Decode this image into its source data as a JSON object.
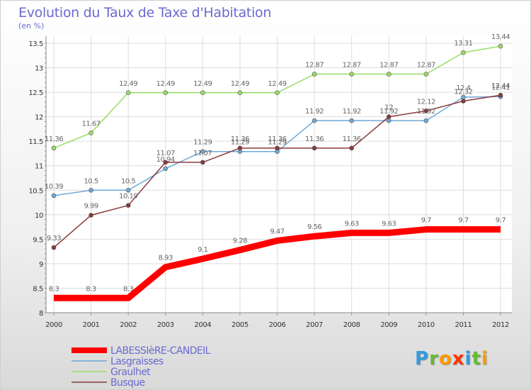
{
  "chart_data": {
    "type": "line",
    "title": "Evolution du Taux de Taxe d'Habitation",
    "subtitle": "(en %)",
    "x": [
      2000,
      2001,
      2002,
      2003,
      2004,
      2005,
      2006,
      2007,
      2008,
      2009,
      2010,
      2011,
      2012
    ],
    "yticks": [
      8,
      8.5,
      9,
      9.5,
      10,
      10.5,
      11,
      11.5,
      12,
      12.5,
      13,
      13.5
    ],
    "ylim": [
      8,
      13.5
    ],
    "grid": true,
    "legend": "bottom-left",
    "series": [
      {
        "name": "LABESSIèRE-CANDEIL",
        "color": "#ff0000",
        "values": [
          8.3,
          8.3,
          8.3,
          8.93,
          9.1,
          9.28,
          9.47,
          9.56,
          9.63,
          9.63,
          9.7,
          9.7,
          9.7
        ]
      },
      {
        "name": "Lasgraisses",
        "color": "#6fa8d6",
        "values": [
          10.39,
          10.5,
          10.5,
          10.94,
          11.29,
          11.29,
          11.29,
          11.92,
          11.92,
          11.92,
          11.92,
          12.4,
          12.41
        ]
      },
      {
        "name": "Graulhet",
        "color": "#99dd66",
        "values": [
          11.36,
          11.67,
          12.49,
          12.49,
          12.49,
          12.49,
          12.49,
          12.87,
          12.87,
          12.87,
          12.87,
          13.31,
          13.44
        ]
      },
      {
        "name": "Busque",
        "color": "#8b3a3a",
        "values": [
          9.33,
          9.99,
          10.19,
          11.07,
          11.07,
          11.36,
          11.36,
          11.36,
          11.36,
          12.0,
          12.12,
          12.32,
          12.44
        ]
      }
    ],
    "point_labels": [
      [
        "8.3",
        "8.3",
        "8.3",
        "8.93",
        "9.1",
        "9.28",
        "9.47",
        "9.56",
        "9.63",
        "9.63",
        "9.7",
        "9.7",
        "9.7"
      ],
      [
        "10.39",
        "10.5",
        "10.5",
        "10.94",
        "11.29",
        "11.29",
        "11.29",
        "11.92",
        "11.92",
        "11.92",
        "11.92",
        "12.4",
        "12.41"
      ],
      [
        "11.36",
        "11.67",
        "12.49",
        "12.49",
        "12.49",
        "12.49",
        "12.49",
        "12.87",
        "12.87",
        "12.87",
        "12.87",
        "13.31",
        "13.44"
      ],
      [
        "9.33",
        "9.99",
        "10.19",
        "11.07",
        "11.07",
        "11.36",
        "11.36",
        "11.36",
        "11.36",
        "12",
        "12.12",
        "12.32",
        "12.44"
      ]
    ]
  },
  "logo": {
    "letters": [
      "P",
      "r",
      "o",
      "x",
      "i",
      "t",
      "i"
    ],
    "colors": [
      "#3399dd",
      "#66bb33",
      "#ff9900",
      "#ff3300",
      "#3399dd",
      "#66bb33",
      "#ff9900"
    ]
  }
}
